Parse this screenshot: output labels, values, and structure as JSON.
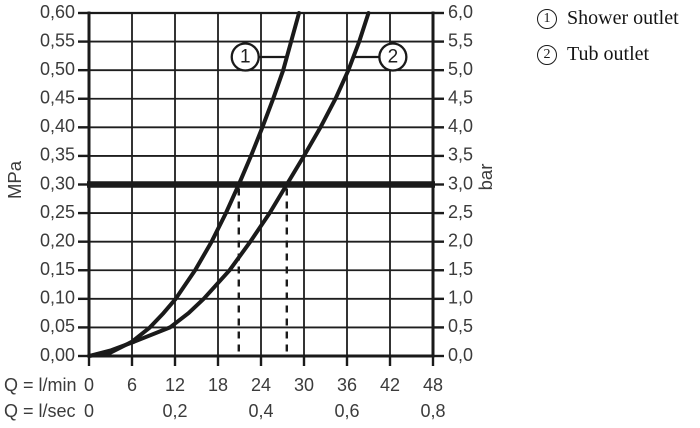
{
  "legend": {
    "items": [
      {
        "symbol": "1",
        "label": "Shower outlet"
      },
      {
        "symbol": "2",
        "label": "Tub outlet"
      }
    ]
  },
  "chart_data": {
    "type": "line",
    "title": "",
    "grid": true,
    "x_axis": {
      "label": "Q = l/min",
      "min": 0,
      "max": 48,
      "tick_step": 6,
      "tick_labels": [
        "0",
        "6",
        "12",
        "18",
        "24",
        "30",
        "36",
        "42",
        "48"
      ]
    },
    "x_axis_secondary": {
      "label": "Q = l/sec",
      "ticks": [
        {
          "at_lmin": 0,
          "label": "0"
        },
        {
          "at_lmin": 12,
          "label": "0,2"
        },
        {
          "at_lmin": 24,
          "label": "0,4"
        },
        {
          "at_lmin": 36,
          "label": "0,6"
        },
        {
          "at_lmin": 48,
          "label": "0,8"
        }
      ]
    },
    "y_axis_left": {
      "label": "MPa",
      "min": 0,
      "max": 0.6,
      "tick_step": 0.05,
      "tick_labels": [
        "0,00",
        "0,05",
        "0,10",
        "0,15",
        "0,20",
        "0,25",
        "0,30",
        "0,35",
        "0,40",
        "0,45",
        "0,50",
        "0,55",
        "0,60"
      ]
    },
    "y_axis_right": {
      "label": "bar",
      "min": 0,
      "max": 6,
      "tick_step": 0.5,
      "tick_labels": [
        "0,0",
        "0,5",
        "1,0",
        "1,5",
        "2,0",
        "2,5",
        "3,0",
        "3,5",
        "4,0",
        "4,5",
        "5,0",
        "5,5",
        "6,0"
      ]
    },
    "reference_line": {
      "pressure_mpa": 0.3,
      "pressure_bar": 3.0
    },
    "series": [
      {
        "id": "1",
        "name": "Shower outlet",
        "flow_at_3bar_lmin": 20.9,
        "points_q_p": [
          [
            0,
            0
          ],
          [
            3.0,
            0.006
          ],
          [
            6.0,
            0.025
          ],
          [
            8.5,
            0.05
          ],
          [
            10.4,
            0.075
          ],
          [
            12.1,
            0.1
          ],
          [
            14.8,
            0.15
          ],
          [
            17.1,
            0.2
          ],
          [
            19.1,
            0.25
          ],
          [
            20.9,
            0.3
          ],
          [
            22.6,
            0.35
          ],
          [
            24.2,
            0.4
          ],
          [
            25.7,
            0.45
          ],
          [
            27.1,
            0.5
          ],
          [
            28.2,
            0.55
          ],
          [
            29.3,
            0.6
          ]
        ]
      },
      {
        "id": "2",
        "name": "Tub outlet",
        "flow_at_3bar_lmin": 27.6,
        "points_q_p": [
          [
            0,
            0
          ],
          [
            3.1,
            0.01
          ],
          [
            6.3,
            0.025
          ],
          [
            11.3,
            0.05
          ],
          [
            13.9,
            0.075
          ],
          [
            16.0,
            0.1
          ],
          [
            19.6,
            0.15
          ],
          [
            22.5,
            0.2
          ],
          [
            25.2,
            0.25
          ],
          [
            27.6,
            0.3
          ],
          [
            30.0,
            0.35
          ],
          [
            32.3,
            0.4
          ],
          [
            34.4,
            0.45
          ],
          [
            36.2,
            0.5
          ],
          [
            37.7,
            0.55
          ],
          [
            39.0,
            0.6
          ]
        ]
      }
    ],
    "dashed_drop_lines": [
      {
        "series": "1",
        "at_flow_lmin": 20.9,
        "from_mpa": 0.3
      },
      {
        "series": "2",
        "at_flow_lmin": 27.6,
        "from_mpa": 0.3
      }
    ],
    "curve_badges": [
      {
        "symbol": "1",
        "q": 21.8,
        "p": 0.523,
        "side": "right"
      },
      {
        "symbol": "2",
        "q": 42.4,
        "p": 0.523,
        "side": "left"
      }
    ],
    "colors": {
      "line": "#1a1a1a",
      "grid": "#1e1e1e",
      "text": "#3b3b3b",
      "background": "#ffffff"
    }
  }
}
